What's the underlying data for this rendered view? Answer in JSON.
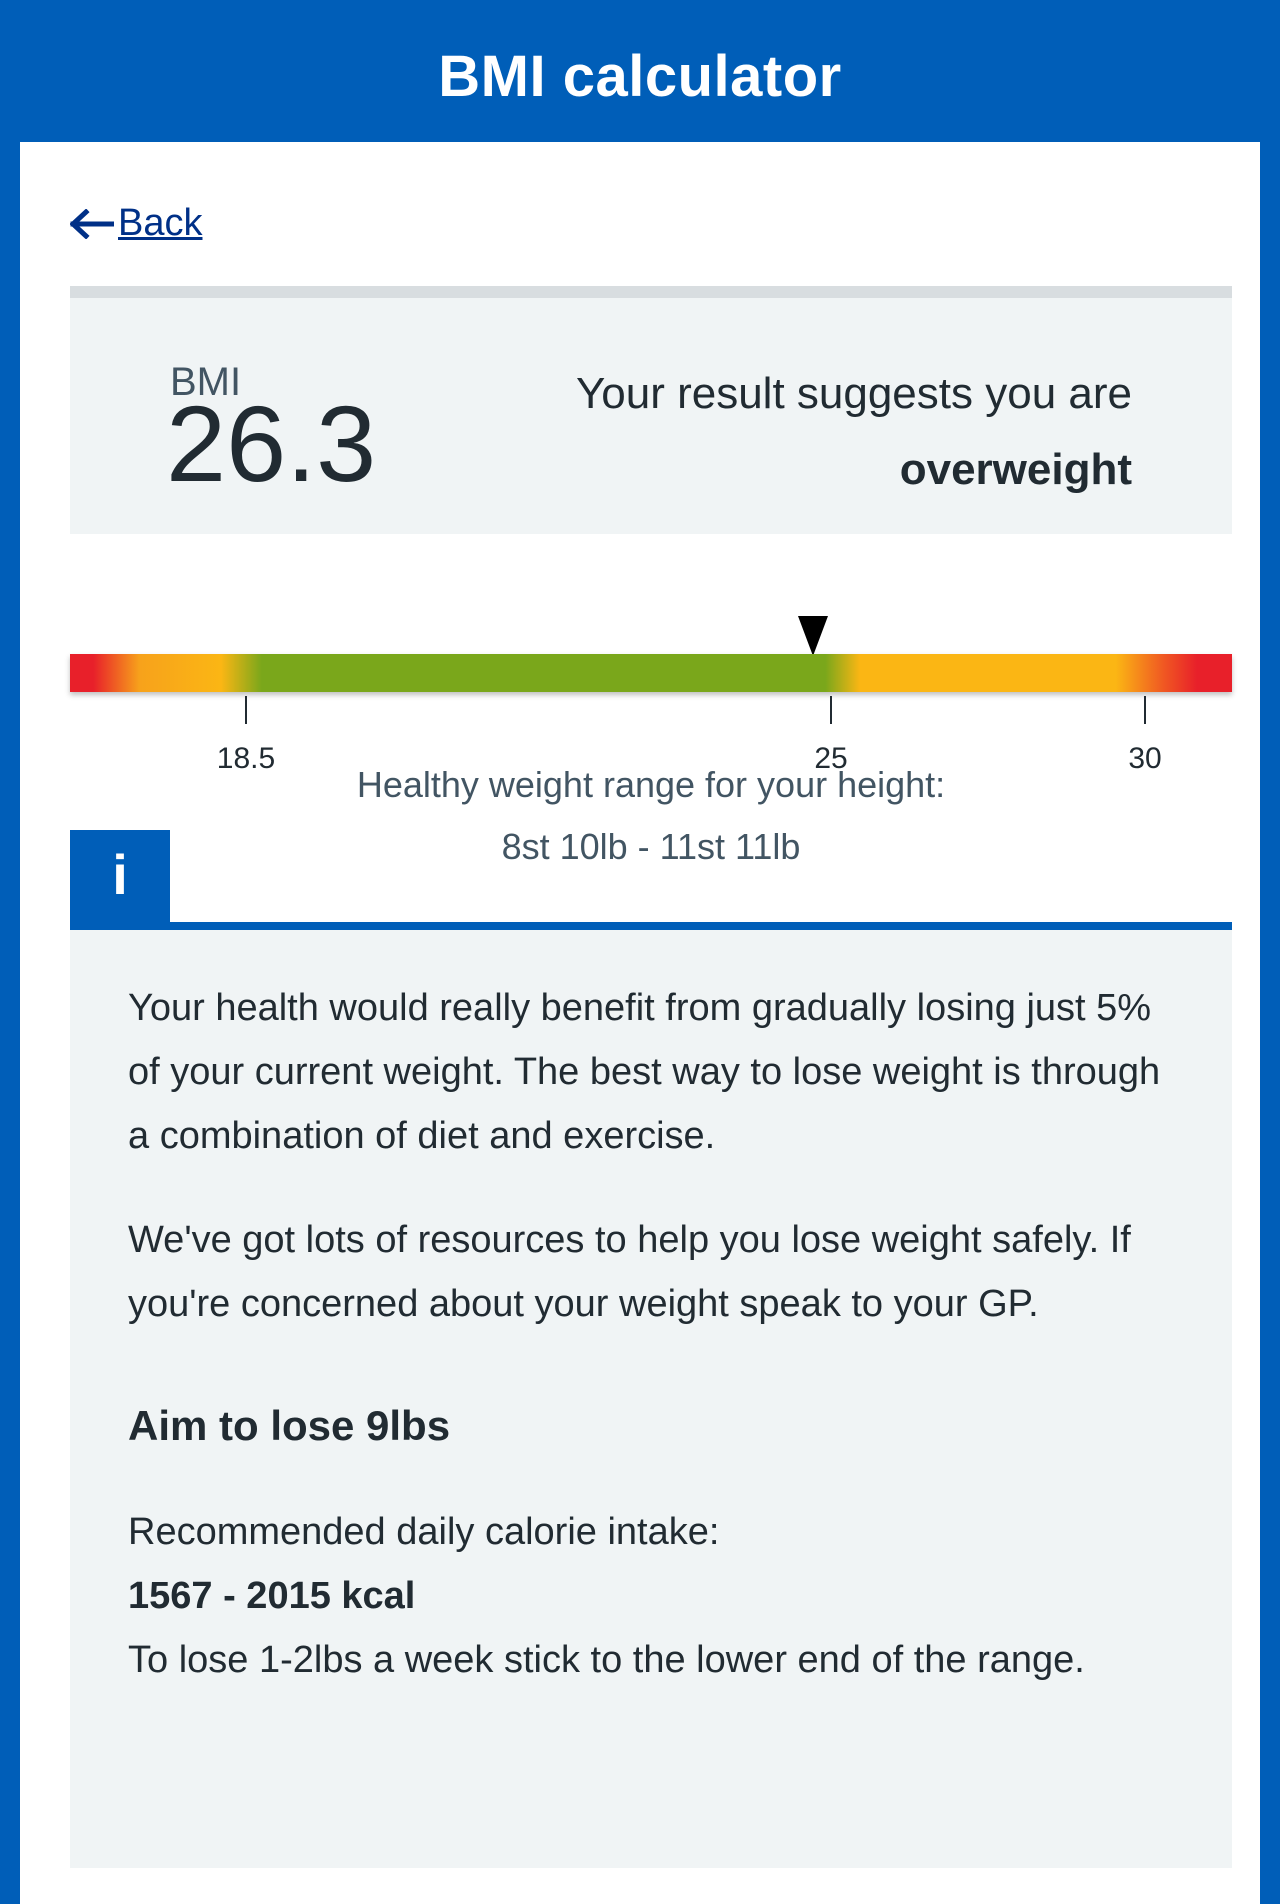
{
  "header": {
    "title": "BMI calculator"
  },
  "nav": {
    "back_label": "Back"
  },
  "result": {
    "bmi_label": "BMI",
    "bmi_value": "26.3",
    "suggestion": "Your result suggests you are",
    "category": "overweight"
  },
  "scale": {
    "ticks": [
      "18.5",
      "25",
      "30"
    ],
    "bmi": 26.3,
    "colors": {
      "red": "#e8202a",
      "amber": "#fbb614",
      "green": "#7aa71b"
    }
  },
  "healthy_range": {
    "label": "Healthy weight range for your height:",
    "value": "8st 10lb - 11st 11lb"
  },
  "info": {
    "icon": "i",
    "paragraph1": "Your health would really benefit from gradually losing just 5% of your current weight. The best way to lose weight is through a combination of diet and exercise.",
    "paragraph2": "We've got lots of resources to help you lose weight safely. If you're concerned about your weight speak to your GP.",
    "goal_heading": "Aim to lose 9lbs",
    "calorie_label": "Recommended daily calorie intake:",
    "calorie_value": "1567 - 2015 kcal",
    "calorie_note": "To lose 1-2lbs a week stick to the lower end of the range."
  },
  "theme": {
    "brand": "#005eb8",
    "link": "#003087",
    "card": "#f0f4f5"
  }
}
